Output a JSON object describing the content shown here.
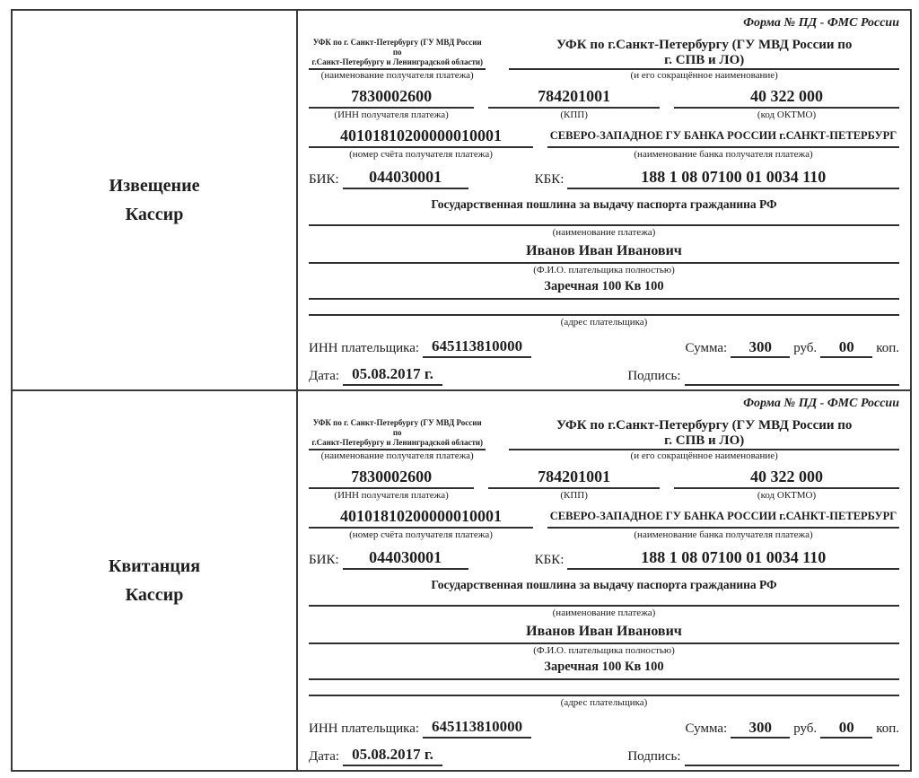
{
  "slip": {
    "form_title": "Форма № ПД - ФМС России",
    "recipient_small_line1": "УФК по г. Санкт-Петербургу (ГУ МВД России по",
    "recipient_small_line2": "г.Санкт-Петербургу и Ленинградской области)",
    "recipient_name_line1": "УФК по г.Санкт-Петербургу (ГУ МВД России по",
    "recipient_name_line2": "г. СПВ и ЛО)",
    "label_recipient": "(наименование получателя платежа)",
    "label_short_name": "(и его сокращённое наименование)",
    "recipient_inn": "7830002600",
    "recipient_kpp": "784201001",
    "oktmo": "40 322 000",
    "label_inn": "(ИНН получателя платежа)",
    "label_kpp": "(КПП)",
    "label_oktmo": "(код ОКТМО)",
    "account_number": "40101810200000010001",
    "bank_name": "СЕВЕРО-ЗАПАДНОЕ ГУ БАНКА РОССИИ г.САНКТ-ПЕТЕРБУРГ",
    "label_account": "(номер счёта получателя платежа)",
    "label_bank": "(наименование банка получателя платежа)",
    "bik_label": "БИК:",
    "bik": "044030001",
    "kbk_label": "КБК:",
    "kbk": "188 1 08 07100 01 0034 110",
    "payment_purpose": "Государственная пошлина за выдачу паспорта гражданина РФ",
    "label_payment_name": "(наименование платежа)",
    "payer_name": "Иванов Иван Иванович",
    "label_payer_name": "(Ф.И.О. плательщика полностью)",
    "payer_address": "Заречная 100 Кв 100",
    "label_payer_address": "(адрес плательщика)",
    "payer_inn_label": "ИНН плательщика:",
    "payer_inn": "645113810000",
    "sum_label": "Сумма:",
    "rub_amount": "300",
    "rub_word": "руб.",
    "kop_amount": "00",
    "kop_word": "коп.",
    "date_label": "Дата:",
    "date_value": "05.08.2017 г.",
    "signature_label": "Подпись:"
  },
  "sections": [
    {
      "role_line1": "Извещение",
      "role_line2": "Кассир"
    },
    {
      "role_line1": "Квитанция",
      "role_line2": "Кассир"
    }
  ]
}
